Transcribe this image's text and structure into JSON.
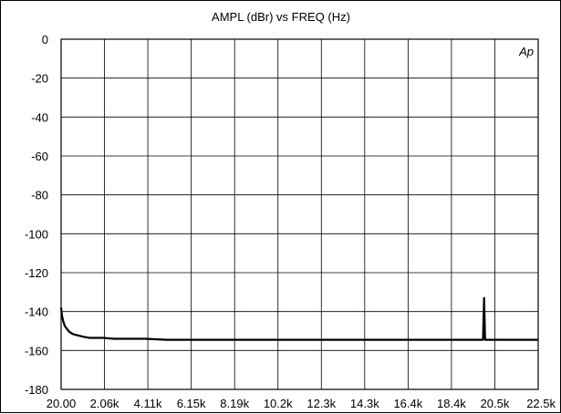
{
  "chart_data": {
    "type": "line",
    "title": "AMPL (dBr)  vs  FREQ (Hz)",
    "xlabel": "",
    "ylabel": "",
    "annotation": "Ap",
    "xlim": [
      20,
      22500
    ],
    "ylim": [
      -180,
      0
    ],
    "grid": true,
    "legend": "none",
    "line_color": "#000000",
    "x_tick_labels": [
      "20.00",
      "2.06k",
      "4.11k",
      "6.15k",
      "8.19k",
      "10.2k",
      "12.3k",
      "14.3k",
      "16.4k",
      "18.4k",
      "20.5k",
      "22.5k"
    ],
    "y_tick_labels": [
      "0",
      "-20",
      "-40",
      "-60",
      "-80",
      "-100",
      "-120",
      "-140",
      "-160",
      "-180"
    ],
    "y_ticks": [
      0,
      -20,
      -40,
      -60,
      -80,
      -100,
      -120,
      -140,
      -160,
      -180
    ],
    "series": [
      {
        "values_x": [
          20,
          60,
          120,
          200,
          300,
          420,
          560,
          720,
          900,
          1100,
          1350,
          1650,
          2000,
          2500,
          3000,
          4000,
          5000,
          6000,
          7000,
          8000,
          9000,
          10000,
          11000,
          12000,
          13000,
          14000,
          15000,
          16000,
          17000,
          18000,
          19000,
          19900,
          19950,
          20000,
          20050,
          20100,
          20200,
          21000,
          22000,
          22500
        ],
        "values_y": [
          -138,
          -142,
          -145,
          -147.5,
          -149,
          -150.5,
          -151.5,
          -152,
          -152.5,
          -153,
          -153.5,
          -153.5,
          -153.5,
          -154,
          -154,
          -154,
          -154.5,
          -154.5,
          -154.5,
          -154.5,
          -154.5,
          -154.5,
          -154.5,
          -154.5,
          -154.5,
          -154.5,
          -154.5,
          -154.5,
          -154.5,
          -154.5,
          -154.5,
          -154.5,
          -133,
          -154.5,
          -154.5,
          -154.5,
          -154.5,
          -154.5,
          -154.5,
          -154.5
        ]
      }
    ]
  }
}
